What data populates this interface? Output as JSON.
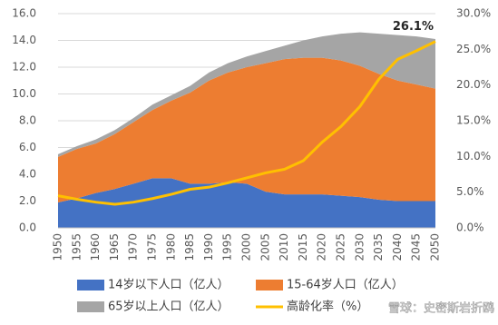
{
  "chart_data": {
    "type": "stacked-area-line",
    "x": [
      1950,
      1955,
      1960,
      1965,
      1970,
      1975,
      1980,
      1985,
      1990,
      1995,
      2000,
      2005,
      2010,
      2015,
      2020,
      2025,
      2030,
      2035,
      2040,
      2045,
      2050
    ],
    "series": [
      {
        "name": "14岁以下人口（亿人）",
        "color": "#4472c4",
        "values": [
          1.9,
          2.2,
          2.6,
          2.9,
          3.3,
          3.7,
          3.7,
          3.3,
          3.3,
          3.4,
          3.3,
          2.7,
          2.5,
          2.5,
          2.5,
          2.4,
          2.3,
          2.1,
          2.0,
          2.0,
          2.0
        ]
      },
      {
        "name": "15-64岁人口（亿人）",
        "color": "#ed7d31",
        "values": [
          3.4,
          3.7,
          3.7,
          4.1,
          4.6,
          5.1,
          5.8,
          6.8,
          7.7,
          8.2,
          8.7,
          9.6,
          10.1,
          10.2,
          10.2,
          10.1,
          9.8,
          9.4,
          9.0,
          8.7,
          8.4
        ]
      },
      {
        "name": "65岁以上人口（亿人）",
        "color": "#a5a5a5",
        "values": [
          0.2,
          0.2,
          0.3,
          0.3,
          0.3,
          0.4,
          0.4,
          0.5,
          0.6,
          0.7,
          0.8,
          0.9,
          1.0,
          1.3,
          1.6,
          2.0,
          2.5,
          3.0,
          3.4,
          3.6,
          3.7
        ]
      },
      {
        "name": "高龄化率（%）",
        "color": "#ffc000",
        "axis": "y2",
        "values": [
          4.5,
          4.0,
          3.6,
          3.3,
          3.6,
          4.1,
          4.7,
          5.4,
          5.7,
          6.3,
          7.0,
          7.7,
          8.2,
          9.4,
          12.0,
          14.2,
          17.0,
          20.8,
          23.6,
          24.8,
          26.1
        ],
        "value_labels": [
          null,
          null,
          null,
          null,
          null,
          null,
          null,
          null,
          null,
          null,
          null,
          null,
          null,
          null,
          null,
          null,
          null,
          null,
          null,
          null,
          "26.1%"
        ]
      }
    ],
    "xlim": [
      1950,
      2050
    ],
    "ylim": [
      0,
      16
    ],
    "yticks": [
      {
        "value": 0,
        "label": "0.0"
      },
      {
        "value": 2,
        "label": "2.0"
      },
      {
        "value": 4,
        "label": "4.0"
      },
      {
        "value": 6,
        "label": "6.0"
      },
      {
        "value": 8,
        "label": "8.0"
      },
      {
        "value": 10,
        "label": "10.0"
      },
      {
        "value": 12,
        "label": "12.0"
      },
      {
        "value": 14,
        "label": "14.0"
      },
      {
        "value": 16,
        "label": "16.0"
      }
    ],
    "y2lim": [
      0,
      30
    ],
    "y2ticks": [
      {
        "value": 0,
        "label": "0.0%"
      },
      {
        "value": 5,
        "label": "5.0%"
      },
      {
        "value": 10,
        "label": "10.0%"
      },
      {
        "value": 15,
        "label": "15.0%"
      },
      {
        "value": 20,
        "label": "20.0%"
      },
      {
        "value": 25,
        "label": "25.0%"
      },
      {
        "value": 30,
        "label": "30.0%"
      }
    ],
    "grid": true,
    "watermark": "雪球：史密斯岩折鸥"
  }
}
